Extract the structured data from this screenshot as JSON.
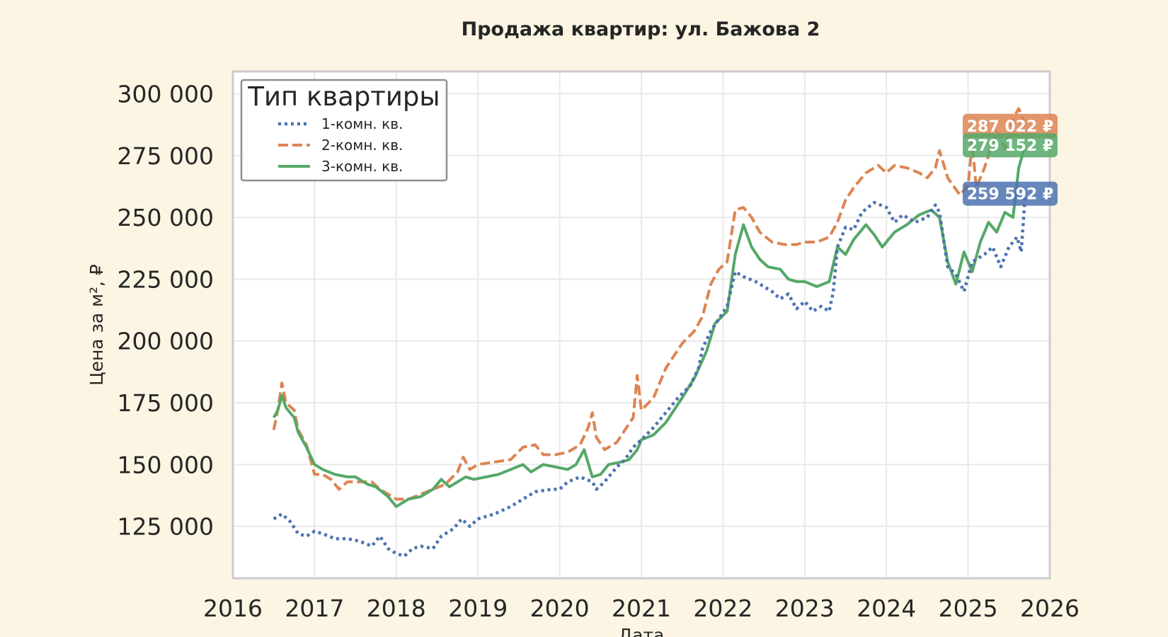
{
  "chart_data": {
    "type": "line",
    "title": "Продажа квартир: ул. Бажова 2",
    "xlabel": "Дата",
    "ylabel": "Цена за м², ₽",
    "xlim": [
      2016,
      2026
    ],
    "ylim": [
      104000,
      309000
    ],
    "x_ticks": [
      "2016",
      "2017",
      "2018",
      "2019",
      "2020",
      "2021",
      "2022",
      "2023",
      "2024",
      "2025",
      "2026"
    ],
    "y_ticks": [
      {
        "value": 125000,
        "label": "125 000"
      },
      {
        "value": 150000,
        "label": "150 000"
      },
      {
        "value": 175000,
        "label": "175 000"
      },
      {
        "value": 200000,
        "label": "200 000"
      },
      {
        "value": 225000,
        "label": "225 000"
      },
      {
        "value": 250000,
        "label": "250 000"
      },
      {
        "value": 275000,
        "label": "275 000"
      },
      {
        "value": 300000,
        "label": "300 000"
      }
    ],
    "grid": true,
    "legend": {
      "title": "Тип квартиры",
      "position": "top-left"
    },
    "series": [
      {
        "name": "1-комн. кв.",
        "color": "#4c72b0",
        "style": "dotted",
        "end_label": "259 592 ₽",
        "points": [
          [
            2016.5,
            128000
          ],
          [
            2016.6,
            130000
          ],
          [
            2016.7,
            127000
          ],
          [
            2016.8,
            122000
          ],
          [
            2016.9,
            121000
          ],
          [
            2017.0,
            123000
          ],
          [
            2017.1,
            122000
          ],
          [
            2017.25,
            120000
          ],
          [
            2017.4,
            120000
          ],
          [
            2017.55,
            119000
          ],
          [
            2017.7,
            117000
          ],
          [
            2017.8,
            121000
          ],
          [
            2017.9,
            116000
          ],
          [
            2018.0,
            114000
          ],
          [
            2018.1,
            113000
          ],
          [
            2018.2,
            116000
          ],
          [
            2018.3,
            117000
          ],
          [
            2018.45,
            116000
          ],
          [
            2018.55,
            121000
          ],
          [
            2018.7,
            124000
          ],
          [
            2018.8,
            128000
          ],
          [
            2018.9,
            125000
          ],
          [
            2019.0,
            128000
          ],
          [
            2019.2,
            130000
          ],
          [
            2019.4,
            133000
          ],
          [
            2019.55,
            136000
          ],
          [
            2019.7,
            139000
          ],
          [
            2019.9,
            140000
          ],
          [
            2020.0,
            140000
          ],
          [
            2020.1,
            143000
          ],
          [
            2020.25,
            145000
          ],
          [
            2020.4,
            143000
          ],
          [
            2020.45,
            140000
          ],
          [
            2020.55,
            143000
          ],
          [
            2020.7,
            149000
          ],
          [
            2020.8,
            152000
          ],
          [
            2020.9,
            157000
          ],
          [
            2021.0,
            160000
          ],
          [
            2021.15,
            165000
          ],
          [
            2021.3,
            171000
          ],
          [
            2021.45,
            177000
          ],
          [
            2021.6,
            182000
          ],
          [
            2021.7,
            189000
          ],
          [
            2021.75,
            197000
          ],
          [
            2021.85,
            204000
          ],
          [
            2021.95,
            209000
          ],
          [
            2022.05,
            214000
          ],
          [
            2022.15,
            228000
          ],
          [
            2022.25,
            226000
          ],
          [
            2022.4,
            224000
          ],
          [
            2022.5,
            222000
          ],
          [
            2022.6,
            220000
          ],
          [
            2022.7,
            217000
          ],
          [
            2022.8,
            219000
          ],
          [
            2022.9,
            213000
          ],
          [
            2023.0,
            216000
          ],
          [
            2023.1,
            212000
          ],
          [
            2023.2,
            214000
          ],
          [
            2023.3,
            212000
          ],
          [
            2023.35,
            220000
          ],
          [
            2023.4,
            238000
          ],
          [
            2023.5,
            246000
          ],
          [
            2023.6,
            245000
          ],
          [
            2023.7,
            252000
          ],
          [
            2023.85,
            256000
          ],
          [
            2024.0,
            254000
          ],
          [
            2024.1,
            248000
          ],
          [
            2024.2,
            251000
          ],
          [
            2024.35,
            248000
          ],
          [
            2024.5,
            250000
          ],
          [
            2024.6,
            255000
          ],
          [
            2024.65,
            252000
          ],
          [
            2024.75,
            230000
          ],
          [
            2024.85,
            227000
          ],
          [
            2024.95,
            220000
          ],
          [
            2025.05,
            232000
          ],
          [
            2025.2,
            235000
          ],
          [
            2025.3,
            238000
          ],
          [
            2025.4,
            230000
          ],
          [
            2025.5,
            238000
          ],
          [
            2025.6,
            242000
          ],
          [
            2025.65,
            236000
          ],
          [
            2025.7,
            259592
          ]
        ]
      },
      {
        "name": "2-комн. кв.",
        "color": "#dd8452",
        "style": "dashed",
        "end_label": "287 022 ₽",
        "points": [
          [
            2016.5,
            164000
          ],
          [
            2016.55,
            172000
          ],
          [
            2016.6,
            183000
          ],
          [
            2016.65,
            175000
          ],
          [
            2016.75,
            172000
          ],
          [
            2016.8,
            164000
          ],
          [
            2016.9,
            158000
          ],
          [
            2017.0,
            146000
          ],
          [
            2017.1,
            146000
          ],
          [
            2017.2,
            144000
          ],
          [
            2017.3,
            140000
          ],
          [
            2017.4,
            143000
          ],
          [
            2017.55,
            143000
          ],
          [
            2017.7,
            143000
          ],
          [
            2017.8,
            140000
          ],
          [
            2017.9,
            138000
          ],
          [
            2018.0,
            136000
          ],
          [
            2018.15,
            136000
          ],
          [
            2018.3,
            138000
          ],
          [
            2018.45,
            140000
          ],
          [
            2018.6,
            142000
          ],
          [
            2018.75,
            147000
          ],
          [
            2018.82,
            153000
          ],
          [
            2018.9,
            148000
          ],
          [
            2019.0,
            150000
          ],
          [
            2019.2,
            151000
          ],
          [
            2019.4,
            152000
          ],
          [
            2019.55,
            157000
          ],
          [
            2019.7,
            158000
          ],
          [
            2019.8,
            154000
          ],
          [
            2019.95,
            154000
          ],
          [
            2020.1,
            155000
          ],
          [
            2020.25,
            158000
          ],
          [
            2020.35,
            165000
          ],
          [
            2020.4,
            171000
          ],
          [
            2020.45,
            161000
          ],
          [
            2020.55,
            156000
          ],
          [
            2020.7,
            159000
          ],
          [
            2020.8,
            164000
          ],
          [
            2020.9,
            169000
          ],
          [
            2020.95,
            186000
          ],
          [
            2021.0,
            172000
          ],
          [
            2021.15,
            177000
          ],
          [
            2021.3,
            189000
          ],
          [
            2021.5,
            199000
          ],
          [
            2021.65,
            204000
          ],
          [
            2021.75,
            210000
          ],
          [
            2021.85,
            223000
          ],
          [
            2021.95,
            229000
          ],
          [
            2022.05,
            232000
          ],
          [
            2022.15,
            253000
          ],
          [
            2022.25,
            254000
          ],
          [
            2022.35,
            250000
          ],
          [
            2022.45,
            244000
          ],
          [
            2022.6,
            240000
          ],
          [
            2022.75,
            239000
          ],
          [
            2022.9,
            239000
          ],
          [
            2023.0,
            240000
          ],
          [
            2023.15,
            240000
          ],
          [
            2023.3,
            242000
          ],
          [
            2023.4,
            248000
          ],
          [
            2023.5,
            257000
          ],
          [
            2023.6,
            262000
          ],
          [
            2023.75,
            268000
          ],
          [
            2023.9,
            271000
          ],
          [
            2024.0,
            268000
          ],
          [
            2024.1,
            271000
          ],
          [
            2024.25,
            270000
          ],
          [
            2024.4,
            268000
          ],
          [
            2024.5,
            266000
          ],
          [
            2024.6,
            270000
          ],
          [
            2024.65,
            277000
          ],
          [
            2024.75,
            266000
          ],
          [
            2024.9,
            259000
          ],
          [
            2025.0,
            263000
          ],
          [
            2025.05,
            280000
          ],
          [
            2025.1,
            262000
          ],
          [
            2025.2,
            270000
          ],
          [
            2025.35,
            285000
          ],
          [
            2025.45,
            278000
          ],
          [
            2025.55,
            290000
          ],
          [
            2025.62,
            294000
          ],
          [
            2025.7,
            287022
          ]
        ]
      },
      {
        "name": "3-комн. кв.",
        "color": "#55a868",
        "style": "solid",
        "end_label": "279 152 ₽",
        "points": [
          [
            2016.5,
            169000
          ],
          [
            2016.55,
            172000
          ],
          [
            2016.6,
            178000
          ],
          [
            2016.65,
            173000
          ],
          [
            2016.75,
            169000
          ],
          [
            2016.8,
            163000
          ],
          [
            2016.9,
            157000
          ],
          [
            2017.0,
            150000
          ],
          [
            2017.1,
            148000
          ],
          [
            2017.25,
            146000
          ],
          [
            2017.4,
            145000
          ],
          [
            2017.5,
            145000
          ],
          [
            2017.65,
            142000
          ],
          [
            2017.75,
            141000
          ],
          [
            2017.9,
            137000
          ],
          [
            2018.0,
            133000
          ],
          [
            2018.15,
            136000
          ],
          [
            2018.3,
            137000
          ],
          [
            2018.45,
            140000
          ],
          [
            2018.55,
            144000
          ],
          [
            2018.65,
            141000
          ],
          [
            2018.75,
            143000
          ],
          [
            2018.85,
            145000
          ],
          [
            2018.95,
            144000
          ],
          [
            2019.1,
            145000
          ],
          [
            2019.25,
            146000
          ],
          [
            2019.4,
            148000
          ],
          [
            2019.55,
            150000
          ],
          [
            2019.65,
            147000
          ],
          [
            2019.8,
            150000
          ],
          [
            2019.95,
            149000
          ],
          [
            2020.1,
            148000
          ],
          [
            2020.2,
            150000
          ],
          [
            2020.3,
            156000
          ],
          [
            2020.4,
            145000
          ],
          [
            2020.5,
            146000
          ],
          [
            2020.6,
            150000
          ],
          [
            2020.75,
            151000
          ],
          [
            2020.85,
            152000
          ],
          [
            2020.95,
            156000
          ],
          [
            2021.0,
            160000
          ],
          [
            2021.15,
            162000
          ],
          [
            2021.3,
            167000
          ],
          [
            2021.5,
            177000
          ],
          [
            2021.65,
            185000
          ],
          [
            2021.8,
            196000
          ],
          [
            2021.9,
            207000
          ],
          [
            2022.05,
            212000
          ],
          [
            2022.15,
            235000
          ],
          [
            2022.25,
            247000
          ],
          [
            2022.35,
            238000
          ],
          [
            2022.45,
            233000
          ],
          [
            2022.55,
            230000
          ],
          [
            2022.7,
            229000
          ],
          [
            2022.8,
            225000
          ],
          [
            2022.9,
            224000
          ],
          [
            2023.0,
            224000
          ],
          [
            2023.15,
            222000
          ],
          [
            2023.3,
            224000
          ],
          [
            2023.4,
            238000
          ],
          [
            2023.5,
            235000
          ],
          [
            2023.6,
            241000
          ],
          [
            2023.75,
            247000
          ],
          [
            2023.85,
            243000
          ],
          [
            2023.95,
            238000
          ],
          [
            2024.1,
            244000
          ],
          [
            2024.25,
            247000
          ],
          [
            2024.4,
            251000
          ],
          [
            2024.55,
            253000
          ],
          [
            2024.65,
            250000
          ],
          [
            2024.75,
            232000
          ],
          [
            2024.85,
            223000
          ],
          [
            2024.95,
            236000
          ],
          [
            2025.05,
            228000
          ],
          [
            2025.15,
            240000
          ],
          [
            2025.25,
            248000
          ],
          [
            2025.35,
            244000
          ],
          [
            2025.45,
            252000
          ],
          [
            2025.55,
            250000
          ],
          [
            2025.62,
            270000
          ],
          [
            2025.7,
            279152
          ]
        ]
      }
    ]
  }
}
